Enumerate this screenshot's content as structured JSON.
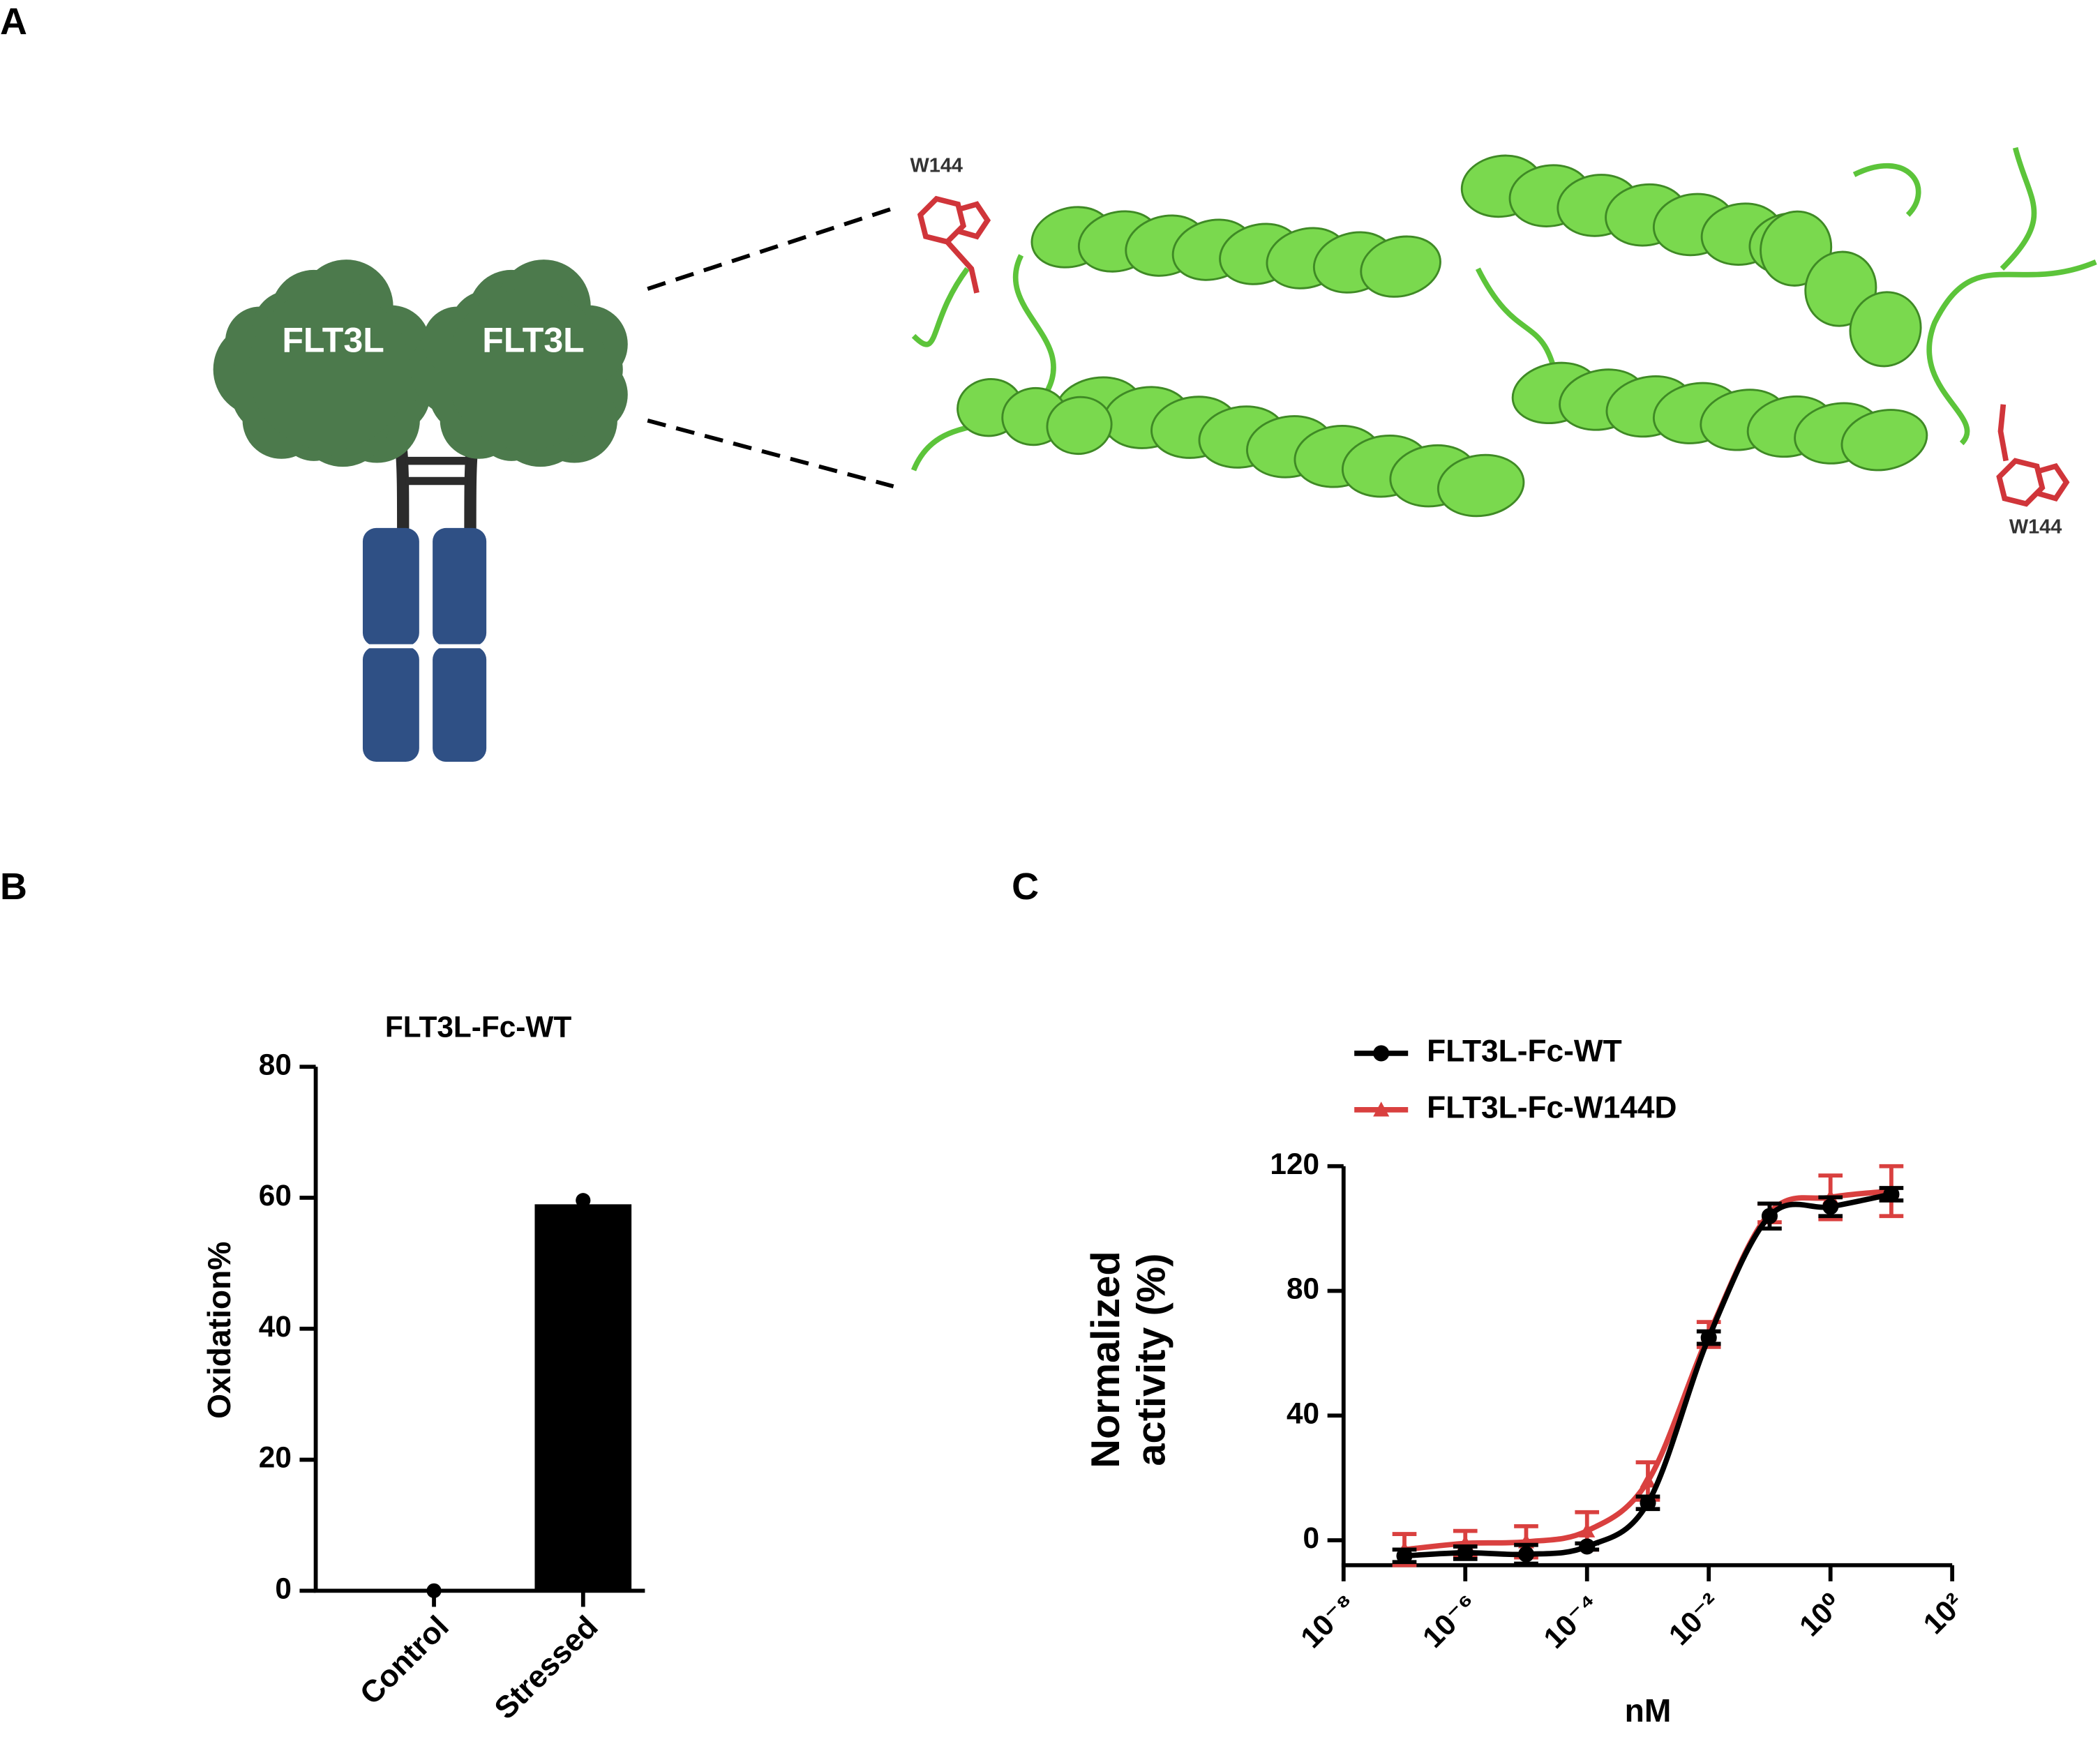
{
  "panel_a": {
    "label": "A",
    "domains": [
      "FLT3L",
      "FLT3L"
    ],
    "residues": [
      "W144",
      "W144"
    ]
  },
  "chart_data": [
    {
      "type": "bar",
      "panel": "B",
      "title": "FLT3L-Fc-WT",
      "categories": [
        "Control",
        "Stressed"
      ],
      "values": [
        0,
        59
      ],
      "points": [
        0,
        59.6
      ],
      "color": "#000000",
      "ylabel": "Oxidation%",
      "ylim": [
        0,
        80
      ],
      "yticks": [
        0,
        20,
        40,
        60,
        80
      ]
    },
    {
      "type": "line",
      "panel": "C",
      "xscale": "log",
      "x": [
        1e-07,
        1e-06,
        1e-05,
        0.0001,
        0.001,
        0.01,
        0.1,
        1,
        10
      ],
      "series": [
        {
          "name": "FLT3L-Fc-WT",
          "color": "#000000",
          "marker": "circle",
          "values": [
            -5,
            -4,
            -4.5,
            -2,
            12,
            65,
            104,
            107,
            111
          ],
          "errors": [
            2,
            2,
            3,
            1,
            2,
            2,
            4,
            3,
            2
          ]
        },
        {
          "name": "FLT3L-Fc-W144D",
          "color": "#d9403f",
          "marker": "triangle",
          "values": [
            -3,
            -1,
            -0.5,
            3,
            19,
            66,
            105,
            110,
            112
          ],
          "errors": [
            5,
            4,
            5,
            6,
            6,
            4,
            3,
            7,
            8
          ]
        }
      ],
      "xlabel": "nM",
      "ylabel": [
        "Normalized",
        "activity (%)"
      ],
      "xlim": [
        1e-08,
        100
      ],
      "xticks": [
        {
          "value": 1e-08,
          "label": "10⁻⁸"
        },
        {
          "value": 1e-06,
          "label": "10⁻⁶"
        },
        {
          "value": 0.0001,
          "label": "10⁻⁴"
        },
        {
          "value": 0.01,
          "label": "10⁻²"
        },
        {
          "value": 1,
          "label": "10⁰"
        },
        {
          "value": 100,
          "label": "10²"
        }
      ],
      "ylim": [
        -8,
        120
      ],
      "yticks": [
        0,
        40,
        80,
        120
      ],
      "legend": "upper left"
    }
  ]
}
